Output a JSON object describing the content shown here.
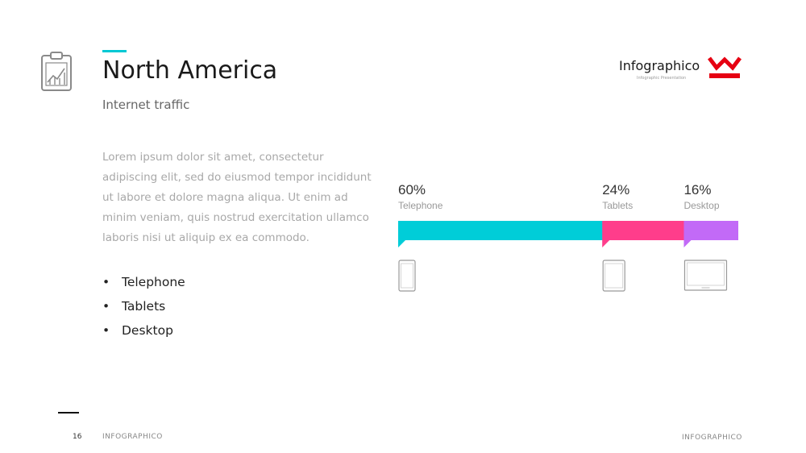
{
  "header": {
    "title": "North America",
    "subtitle": "Internet traffic",
    "icon": "clipboard-chart-icon",
    "accent_color": "#00c8d4"
  },
  "logo": {
    "text": "Infographico",
    "tagline": "Infographic Presentation",
    "mark_color": "#e60012"
  },
  "body": {
    "paragraph": "Lorem ipsum dolor sit amet, consectetur adipiscing elit, sed do eiusmod tempor incididunt ut labore et dolore magna aliqua. Ut enim ad minim veniam, quis nostrud exercitation ullamco laboris nisi ut aliquip ex ea commodo.",
    "bullets": [
      "Telephone",
      "Tablets",
      "Desktop"
    ]
  },
  "chart_data": {
    "type": "bar",
    "orientation": "horizontal-stacked",
    "categories": [
      "Telephone",
      "Tablets",
      "Desktop"
    ],
    "values": [
      60,
      24,
      16
    ],
    "value_labels": [
      "60%",
      "24%",
      "16%"
    ],
    "colors": [
      "#00cdd8",
      "#ff3d8b",
      "#c26af7"
    ],
    "device_icons": [
      "phone-icon",
      "tablet-icon",
      "desktop-icon"
    ],
    "grid": false
  },
  "footer": {
    "page_number": "16",
    "brand_left": "INFOGRAPHICO",
    "brand_right": "INFOGRAPHICO"
  }
}
